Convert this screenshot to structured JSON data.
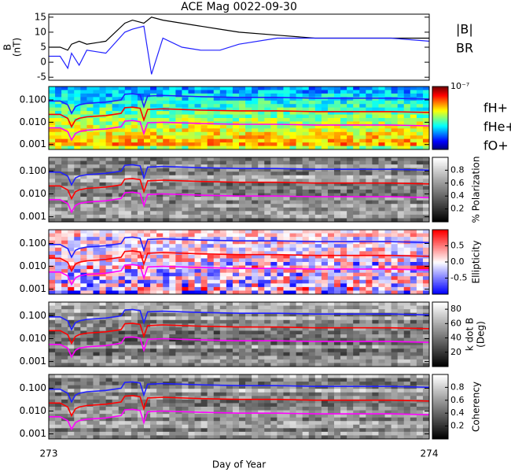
{
  "chart_data": [
    {
      "type": "line",
      "title": "ACE Mag 0022-09-30",
      "ylabel": "B",
      "ylabel_units": "(nT)",
      "x": [
        273.0,
        273.03,
        273.05,
        273.06,
        273.08,
        273.1,
        273.15,
        273.2,
        273.22,
        273.25,
        273.27,
        273.3,
        273.35,
        273.4,
        273.45,
        273.5,
        273.6,
        273.7,
        273.8,
        273.9,
        274.0
      ],
      "series": [
        {
          "name": "|B|",
          "color": "#000000",
          "values": [
            5,
            5,
            4,
            6,
            7,
            6,
            7,
            13,
            14,
            13,
            15,
            14,
            13,
            12,
            11,
            10,
            9,
            8,
            8,
            8,
            8
          ]
        },
        {
          "name": "BR",
          "color": "#2020ff",
          "values": [
            2,
            2,
            -2,
            3,
            -1,
            4,
            3,
            10,
            11,
            12,
            -4,
            8,
            5,
            4,
            4,
            6,
            8,
            8,
            8,
            8,
            7
          ]
        }
      ],
      "xlim": [
        273,
        274
      ],
      "xticks": [
        273,
        274
      ],
      "ylim": [
        -6,
        16
      ],
      "yticks": [
        -5,
        0,
        5,
        10,
        15
      ],
      "legend": true,
      "grid": false
    },
    {
      "type": "spectrogram",
      "colormap": "jet",
      "log": true,
      "legend": true,
      "x": [
        273.0,
        273.03,
        273.05,
        273.06,
        273.07,
        273.08,
        273.1,
        273.15,
        273.19,
        273.2,
        273.22,
        273.24,
        273.25,
        273.26,
        273.3,
        273.4,
        273.5,
        273.6,
        273.7,
        273.8,
        273.9,
        274.0
      ],
      "series": [
        {
          "name": "fH+",
          "color": "#2020ff",
          "values": [
            0.09,
            0.09,
            0.06,
            0.025,
            0.05,
            0.06,
            0.07,
            0.08,
            0.1,
            0.18,
            0.19,
            0.17,
            0.05,
            0.15,
            0.16,
            0.14,
            0.13,
            0.13,
            0.12,
            0.12,
            0.12,
            0.11
          ]
        },
        {
          "name": "fHe+",
          "color": "#ff0000",
          "values": [
            0.0225,
            0.0225,
            0.015,
            0.00625,
            0.0125,
            0.015,
            0.0175,
            0.02,
            0.025,
            0.045,
            0.0475,
            0.0425,
            0.0125,
            0.0375,
            0.04,
            0.035,
            0.0325,
            0.0325,
            0.03,
            0.03,
            0.03,
            0.0275
          ]
        },
        {
          "name": "fO+",
          "color": "#ff00ff",
          "values": [
            0.0056,
            0.0056,
            0.0038,
            0.0016,
            0.0031,
            0.0038,
            0.0044,
            0.005,
            0.0063,
            0.0113,
            0.0119,
            0.0106,
            0.0031,
            0.0094,
            0.01,
            0.0088,
            0.0081,
            0.0081,
            0.0075,
            0.0075,
            0.0075,
            0.0069
          ]
        }
      ],
      "xlim": [
        273,
        274
      ],
      "xticks": [
        273,
        274
      ],
      "ylim": [
        0.0006,
        0.4
      ],
      "yticks": [
        {
          "value": 0.001,
          "label": "0.001"
        },
        {
          "value": 0.01,
          "label": "0.010"
        },
        {
          "value": 0.1,
          "label": "0.100"
        }
      ],
      "clim": [
        -12,
        -7
      ],
      "cticks": [
        {
          "value": -7,
          "label": "10⁻⁷"
        }
      ]
    },
    {
      "type": "spectrogram",
      "colormap": "gray",
      "log": true,
      "colorbar_label": "% Polarization",
      "x": [
        273.0,
        273.03,
        273.05,
        273.06,
        273.07,
        273.08,
        273.1,
        273.15,
        273.19,
        273.2,
        273.22,
        273.24,
        273.25,
        273.26,
        273.3,
        273.4,
        273.5,
        273.6,
        273.7,
        273.8,
        273.9,
        274.0
      ],
      "series": [
        {
          "color": "#2020ff",
          "values": [
            0.09,
            0.09,
            0.06,
            0.025,
            0.05,
            0.06,
            0.07,
            0.08,
            0.1,
            0.18,
            0.19,
            0.17,
            0.05,
            0.15,
            0.16,
            0.14,
            0.13,
            0.13,
            0.12,
            0.12,
            0.12,
            0.11
          ]
        },
        {
          "color": "#ff0000",
          "values": [
            0.0225,
            0.0225,
            0.015,
            0.00625,
            0.0125,
            0.015,
            0.0175,
            0.02,
            0.025,
            0.045,
            0.0475,
            0.0425,
            0.0125,
            0.0375,
            0.04,
            0.035,
            0.0325,
            0.0325,
            0.03,
            0.03,
            0.03,
            0.0275
          ]
        },
        {
          "color": "#ff00ff",
          "values": [
            0.0056,
            0.0056,
            0.0038,
            0.0016,
            0.0031,
            0.0038,
            0.0044,
            0.005,
            0.0063,
            0.0113,
            0.0119,
            0.0106,
            0.0031,
            0.0094,
            0.01,
            0.0088,
            0.0081,
            0.0081,
            0.0075,
            0.0075,
            0.0075,
            0.0069
          ]
        }
      ],
      "xlim": [
        273,
        274
      ],
      "xticks": [
        273,
        274
      ],
      "ylim": [
        0.0006,
        0.4
      ],
      "yticks": [
        {
          "value": 0.001,
          "label": "0.001"
        },
        {
          "value": 0.01,
          "label": "0.010"
        },
        {
          "value": 0.1,
          "label": "0.100"
        }
      ],
      "clim": [
        0,
        1
      ],
      "cticks": [
        0.2,
        0.4,
        0.6,
        0.8
      ]
    },
    {
      "type": "spectrogram",
      "colormap": "bwr",
      "log": true,
      "colorbar_label": "Ellipticity",
      "x": [
        273.0,
        273.03,
        273.05,
        273.06,
        273.07,
        273.08,
        273.1,
        273.15,
        273.19,
        273.2,
        273.22,
        273.24,
        273.25,
        273.26,
        273.3,
        273.4,
        273.5,
        273.6,
        273.7,
        273.8,
        273.9,
        274.0
      ],
      "series": [
        {
          "color": "#2020ff",
          "values": [
            0.09,
            0.09,
            0.06,
            0.025,
            0.05,
            0.06,
            0.07,
            0.08,
            0.1,
            0.18,
            0.19,
            0.17,
            0.05,
            0.15,
            0.16,
            0.14,
            0.13,
            0.13,
            0.12,
            0.12,
            0.12,
            0.11
          ]
        },
        {
          "color": "#ff0000",
          "values": [
            0.0225,
            0.0225,
            0.015,
            0.00625,
            0.0125,
            0.015,
            0.0175,
            0.02,
            0.025,
            0.045,
            0.0475,
            0.0425,
            0.0125,
            0.0375,
            0.04,
            0.035,
            0.0325,
            0.0325,
            0.03,
            0.03,
            0.03,
            0.0275
          ]
        },
        {
          "color": "#ff00ff",
          "values": [
            0.0056,
            0.0056,
            0.0038,
            0.0016,
            0.0031,
            0.0038,
            0.0044,
            0.005,
            0.0063,
            0.0113,
            0.0119,
            0.0106,
            0.0031,
            0.0094,
            0.01,
            0.0088,
            0.0081,
            0.0081,
            0.0075,
            0.0075,
            0.0075,
            0.0069
          ]
        }
      ],
      "xlim": [
        273,
        274
      ],
      "xticks": [
        273,
        274
      ],
      "ylim": [
        0.0006,
        0.4
      ],
      "yticks": [
        {
          "value": 0.001,
          "label": "0.001"
        },
        {
          "value": 0.01,
          "label": "0.010"
        },
        {
          "value": 0.1,
          "label": "0.100"
        }
      ],
      "clim": [
        -1,
        1
      ],
      "cticks": [
        -0.5,
        {
          "value": 0,
          "label": "0.0"
        },
        0.5
      ]
    },
    {
      "type": "spectrogram",
      "colormap": "gray",
      "log": true,
      "colorbar_label": "k dot B",
      "colorbar_units": "(Deg)",
      "x": [
        273.0,
        273.03,
        273.05,
        273.06,
        273.07,
        273.08,
        273.1,
        273.15,
        273.19,
        273.2,
        273.22,
        273.24,
        273.25,
        273.26,
        273.3,
        273.4,
        273.5,
        273.6,
        273.7,
        273.8,
        273.9,
        274.0
      ],
      "series": [
        {
          "color": "#2020ff",
          "values": [
            0.09,
            0.09,
            0.06,
            0.025,
            0.05,
            0.06,
            0.07,
            0.08,
            0.1,
            0.18,
            0.19,
            0.17,
            0.05,
            0.15,
            0.16,
            0.14,
            0.13,
            0.13,
            0.12,
            0.12,
            0.12,
            0.11
          ]
        },
        {
          "color": "#ff0000",
          "values": [
            0.0225,
            0.0225,
            0.015,
            0.00625,
            0.0125,
            0.015,
            0.0175,
            0.02,
            0.025,
            0.045,
            0.0475,
            0.0425,
            0.0125,
            0.0375,
            0.04,
            0.035,
            0.0325,
            0.0325,
            0.03,
            0.03,
            0.03,
            0.0275
          ]
        },
        {
          "color": "#ff00ff",
          "values": [
            0.0056,
            0.0056,
            0.0038,
            0.0016,
            0.0031,
            0.0038,
            0.0044,
            0.005,
            0.0063,
            0.0113,
            0.0119,
            0.0106,
            0.0031,
            0.0094,
            0.01,
            0.0088,
            0.0081,
            0.0081,
            0.0075,
            0.0075,
            0.0075,
            0.0069
          ]
        }
      ],
      "xlim": [
        273,
        274
      ],
      "xticks": [
        273,
        274
      ],
      "ylim": [
        0.0006,
        0.4
      ],
      "yticks": [
        {
          "value": 0.001,
          "label": "0.001"
        },
        {
          "value": 0.01,
          "label": "0.010"
        },
        {
          "value": 0.1,
          "label": "0.100"
        }
      ],
      "clim": [
        0,
        90
      ],
      "cticks": [
        20,
        40,
        60,
        80
      ]
    },
    {
      "type": "spectrogram",
      "colormap": "gray",
      "log": true,
      "colorbar_label": "Coherency",
      "xlabel": "Day of Year",
      "x": [
        273.0,
        273.03,
        273.05,
        273.06,
        273.07,
        273.08,
        273.1,
        273.15,
        273.19,
        273.2,
        273.22,
        273.24,
        273.25,
        273.26,
        273.3,
        273.4,
        273.5,
        273.6,
        273.7,
        273.8,
        273.9,
        274.0
      ],
      "series": [
        {
          "color": "#2020ff",
          "values": [
            0.09,
            0.09,
            0.06,
            0.025,
            0.05,
            0.06,
            0.07,
            0.08,
            0.1,
            0.18,
            0.19,
            0.17,
            0.05,
            0.15,
            0.16,
            0.14,
            0.13,
            0.13,
            0.12,
            0.12,
            0.12,
            0.11
          ]
        },
        {
          "color": "#ff0000",
          "values": [
            0.0225,
            0.0225,
            0.015,
            0.00625,
            0.0125,
            0.015,
            0.0175,
            0.02,
            0.025,
            0.045,
            0.0475,
            0.0425,
            0.0125,
            0.0375,
            0.04,
            0.035,
            0.0325,
            0.0325,
            0.03,
            0.03,
            0.03,
            0.0275
          ]
        },
        {
          "color": "#ff00ff",
          "values": [
            0.0056,
            0.0056,
            0.0038,
            0.0016,
            0.0031,
            0.0038,
            0.0044,
            0.005,
            0.0063,
            0.0113,
            0.0119,
            0.0106,
            0.0031,
            0.0094,
            0.01,
            0.0088,
            0.0081,
            0.0081,
            0.0075,
            0.0075,
            0.0075,
            0.0069
          ]
        }
      ],
      "xlim": [
        273,
        274
      ],
      "xticks": [
        273,
        274
      ],
      "ylim": [
        0.0006,
        0.4
      ],
      "yticks": [
        {
          "value": 0.001,
          "label": "0.001"
        },
        {
          "value": 0.01,
          "label": "0.010"
        },
        {
          "value": 0.1,
          "label": "0.100"
        }
      ],
      "clim": [
        0,
        1
      ],
      "cticks": [
        0.2,
        0.4,
        0.6,
        0.8
      ]
    }
  ]
}
